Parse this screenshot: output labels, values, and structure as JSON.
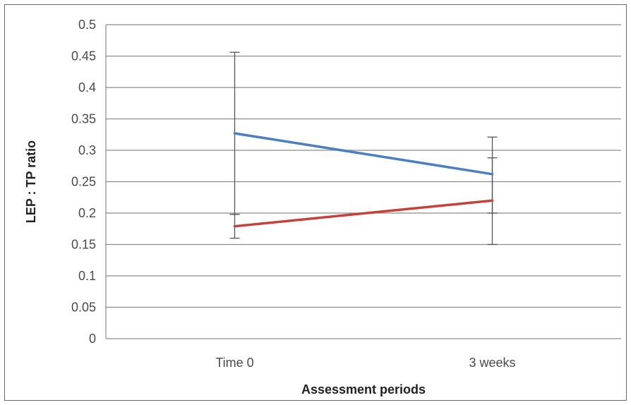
{
  "chart_data": {
    "type": "line",
    "title": "",
    "xlabel": "Assessment periods",
    "ylabel": "LEP : TP ratio",
    "categories": [
      "Time 0",
      "3 weeks"
    ],
    "ylim": [
      0,
      0.5
    ],
    "yticks": [
      "0",
      "0.05",
      "0.1",
      "0.15",
      "0.2",
      "0.25",
      "0.3",
      "0.35",
      "0.4",
      "0.45",
      "0.5"
    ],
    "grid": true,
    "legend": "none",
    "series": [
      {
        "values": [
          0.327,
          0.262
        ],
        "error_low": [
          0.198,
          0.2
        ],
        "error_high": [
          0.456,
          0.321
        ],
        "color": "#4a7fc4"
      },
      {
        "values": [
          0.179,
          0.22
        ],
        "error_low": [
          0.16,
          0.15
        ],
        "error_high": [
          0.198,
          0.288
        ],
        "color": "#c8403a"
      }
    ]
  }
}
